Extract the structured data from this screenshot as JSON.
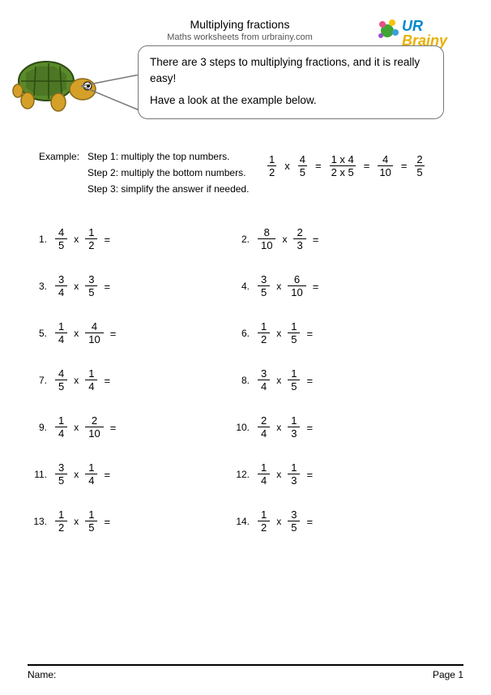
{
  "header": {
    "title": "Multiplying fractions",
    "subtitle": "Maths worksheets from urbrainy.com",
    "logo": {
      "text1": "UR",
      "text2": "Brainy",
      "color1": "#0088cc",
      "color2": "#e8b000"
    }
  },
  "speech": {
    "line1": "There are 3 steps to multiplying fractions, and it is really easy!",
    "line2": "Have a look at the example below."
  },
  "example": {
    "label": "Example:",
    "step1": "Step 1: multiply the top numbers.",
    "step2": "Step 2: multiply the bottom numbers.",
    "step3": "Step 3: simplify the answer if needed.",
    "math": {
      "f1": {
        "n": "1",
        "d": "2"
      },
      "op1": "x",
      "f2": {
        "n": "4",
        "d": "5"
      },
      "eq1": "=",
      "f3": {
        "n": "1 x 4",
        "d": "2 x 5"
      },
      "eq2": "=",
      "f4": {
        "n": "4",
        "d": "10"
      },
      "eq3": "=",
      "f5": {
        "n": "2",
        "d": "5"
      }
    }
  },
  "problems": [
    {
      "num": "1.",
      "a": {
        "n": "4",
        "d": "5"
      },
      "b": {
        "n": "1",
        "d": "2"
      }
    },
    {
      "num": "2.",
      "a": {
        "n": "8",
        "d": "10"
      },
      "b": {
        "n": "2",
        "d": "3"
      }
    },
    {
      "num": "3.",
      "a": {
        "n": "3",
        "d": "4"
      },
      "b": {
        "n": "3",
        "d": "5"
      }
    },
    {
      "num": "4.",
      "a": {
        "n": "3",
        "d": "5"
      },
      "b": {
        "n": "6",
        "d": "10"
      }
    },
    {
      "num": "5.",
      "a": {
        "n": "1",
        "d": "4"
      },
      "b": {
        "n": "4",
        "d": "10"
      }
    },
    {
      "num": "6.",
      "a": {
        "n": "1",
        "d": "2"
      },
      "b": {
        "n": "1",
        "d": "5"
      }
    },
    {
      "num": "7.",
      "a": {
        "n": "4",
        "d": "5"
      },
      "b": {
        "n": "1",
        "d": "4"
      }
    },
    {
      "num": "8.",
      "a": {
        "n": "3",
        "d": "4"
      },
      "b": {
        "n": "1",
        "d": "5"
      }
    },
    {
      "num": "9.",
      "a": {
        "n": "1",
        "d": "4"
      },
      "b": {
        "n": "2",
        "d": "10"
      }
    },
    {
      "num": "10.",
      "a": {
        "n": "2",
        "d": "4"
      },
      "b": {
        "n": "1",
        "d": "3"
      }
    },
    {
      "num": "11.",
      "a": {
        "n": "3",
        "d": "5"
      },
      "b": {
        "n": "1",
        "d": "4"
      }
    },
    {
      "num": "12.",
      "a": {
        "n": "1",
        "d": "4"
      },
      "b": {
        "n": "1",
        "d": "3"
      }
    },
    {
      "num": "13.",
      "a": {
        "n": "1",
        "d": "2"
      },
      "b": {
        "n": "1",
        "d": "5"
      }
    },
    {
      "num": "14.",
      "a": {
        "n": "1",
        "d": "2"
      },
      "b": {
        "n": "3",
        "d": "5"
      }
    }
  ],
  "footer": {
    "name_label": "Name:",
    "page_label": "Page 1"
  },
  "colors": {
    "turtle_shell": "#5a8a2a",
    "turtle_shell_dark": "#3d5f1c",
    "turtle_body": "#d4a028",
    "turtle_eye": "#ffffff"
  }
}
